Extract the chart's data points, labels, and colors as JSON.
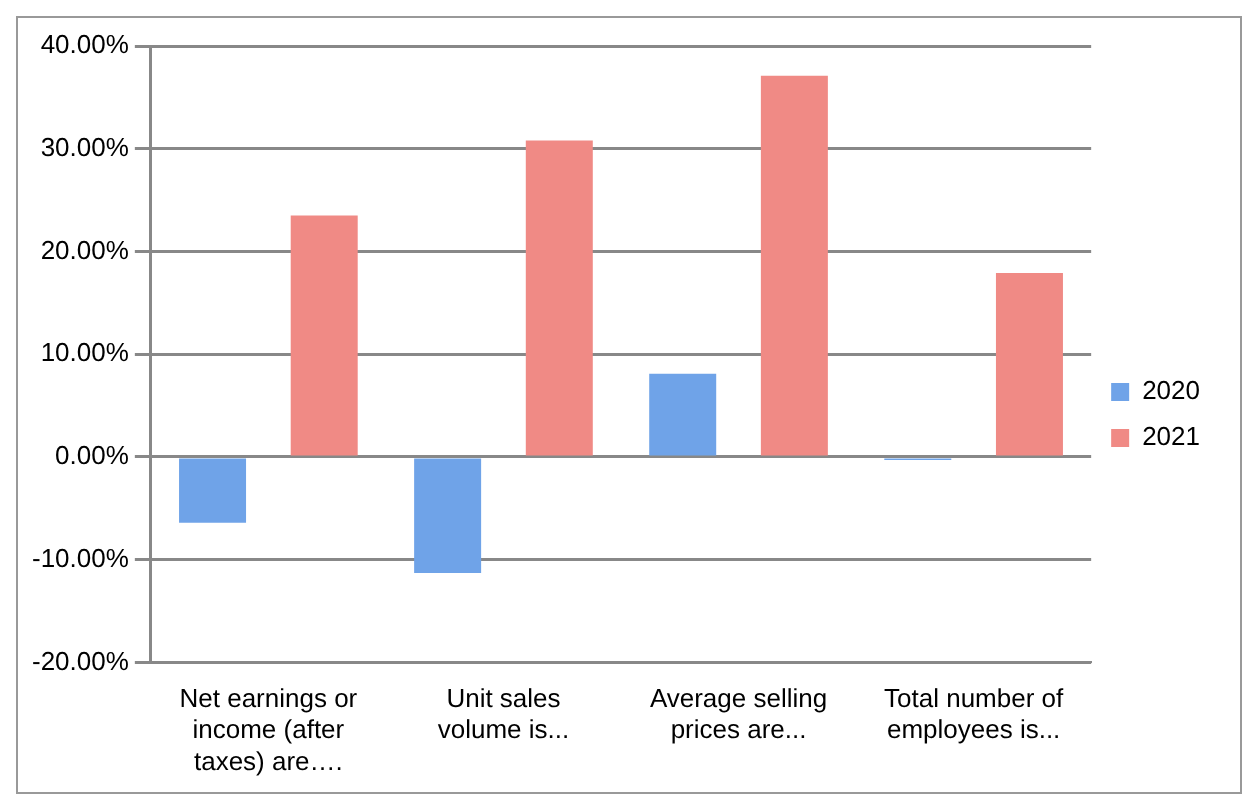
{
  "chart_data": {
    "type": "bar",
    "categories": [
      "Net earnings or income (after taxes) are….",
      "Unit sales volume is...",
      "Average selling prices are...",
      "Total number of employees is..."
    ],
    "series": [
      {
        "name": "2020",
        "color": "#6fa3e8",
        "values": [
          -0.064,
          -0.113,
          0.081,
          -0.003
        ]
      },
      {
        "name": "2021",
        "color": "#f08a85",
        "values": [
          0.235,
          0.308,
          0.371,
          0.179
        ]
      }
    ],
    "ylim": [
      -0.2,
      0.4
    ],
    "yticks": [
      {
        "value": -0.2,
        "label": "-20.00%"
      },
      {
        "value": -0.1,
        "label": "-10.00%"
      },
      {
        "value": 0,
        "label": "0.00%"
      },
      {
        "value": 0.1,
        "label": "10.00%"
      },
      {
        "value": 0.2,
        "label": "20.00%"
      },
      {
        "value": 0.3,
        "label": "30.00%"
      },
      {
        "value": 0.4,
        "label": "40.00%"
      }
    ],
    "grid": "y",
    "legend": "right"
  }
}
